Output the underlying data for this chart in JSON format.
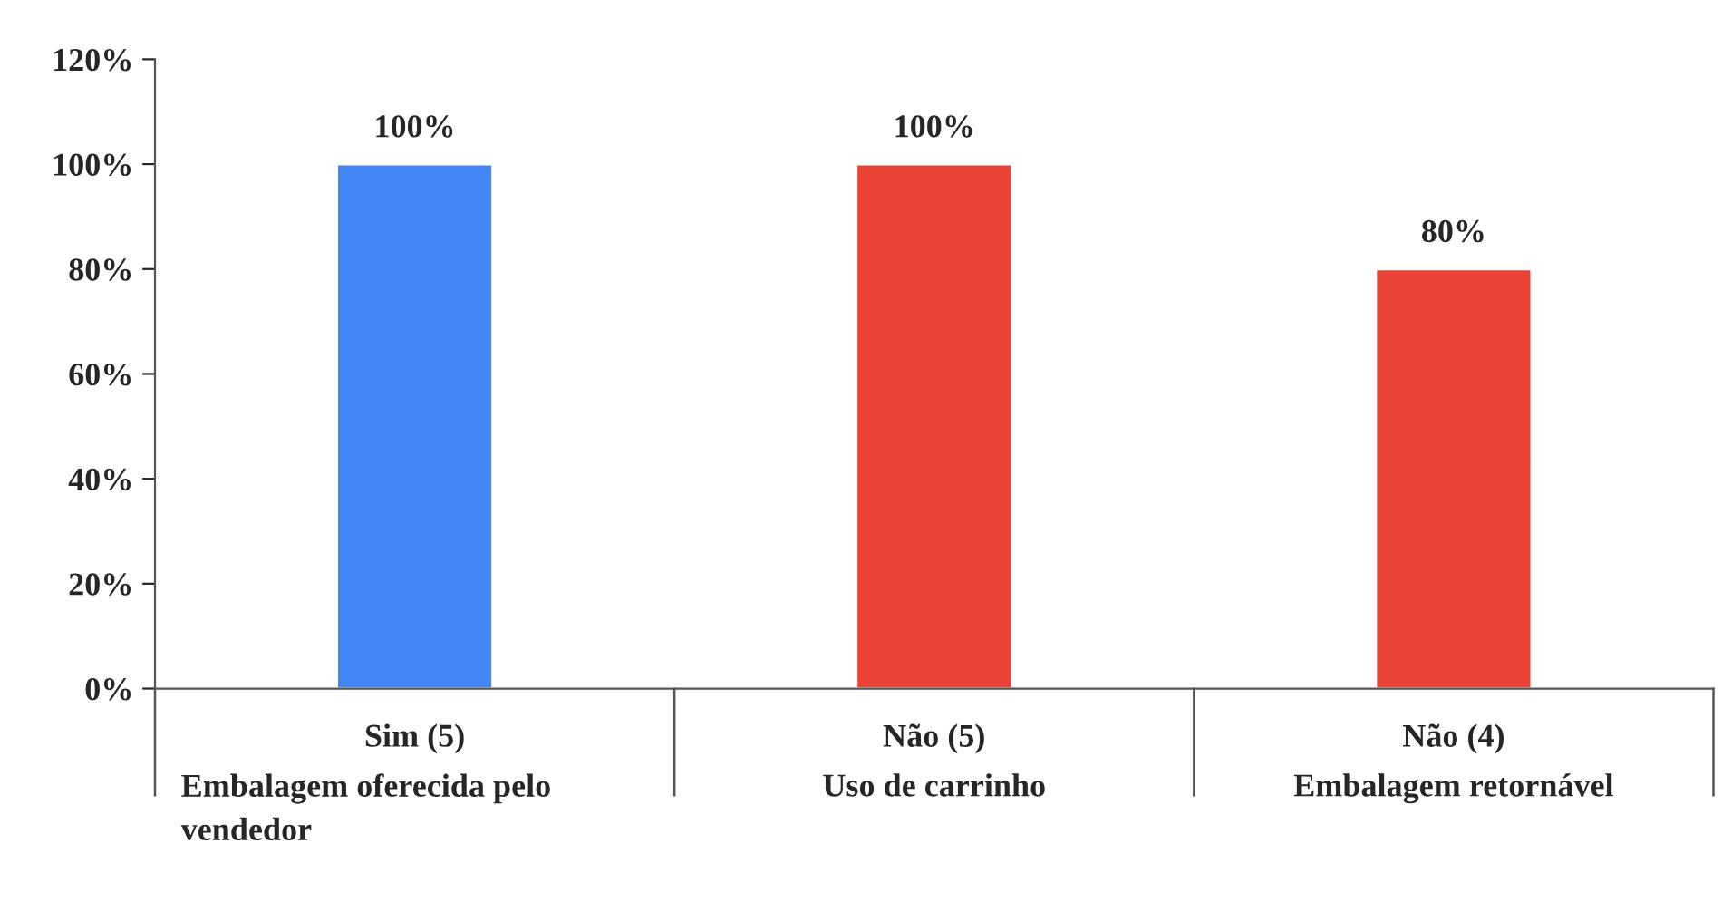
{
  "chart_data": {
    "type": "bar",
    "categories": [
      "Sim (5)\nEmbalagem oferecida pelo\nvendedor",
      "Não (5)\nUso de carrinho",
      "Não (4)\nEmbalagem retornável"
    ],
    "values": [
      100,
      100,
      80
    ],
    "colors": [
      "#4285f4",
      "#ea4335",
      "#ea4335"
    ],
    "value_labels": [
      "100%",
      "100%",
      "80%"
    ],
    "ylim": [
      0,
      120
    ],
    "yticks": [
      {
        "value": 0,
        "label": "0%"
      },
      {
        "value": 20,
        "label": "20%"
      },
      {
        "value": 40,
        "label": "40%"
      },
      {
        "value": 60,
        "label": "60%"
      },
      {
        "value": 80,
        "label": "80%"
      },
      {
        "value": 100,
        "label": "100%"
      },
      {
        "value": 120,
        "label": "120%"
      }
    ],
    "grid": false,
    "legend": false
  }
}
